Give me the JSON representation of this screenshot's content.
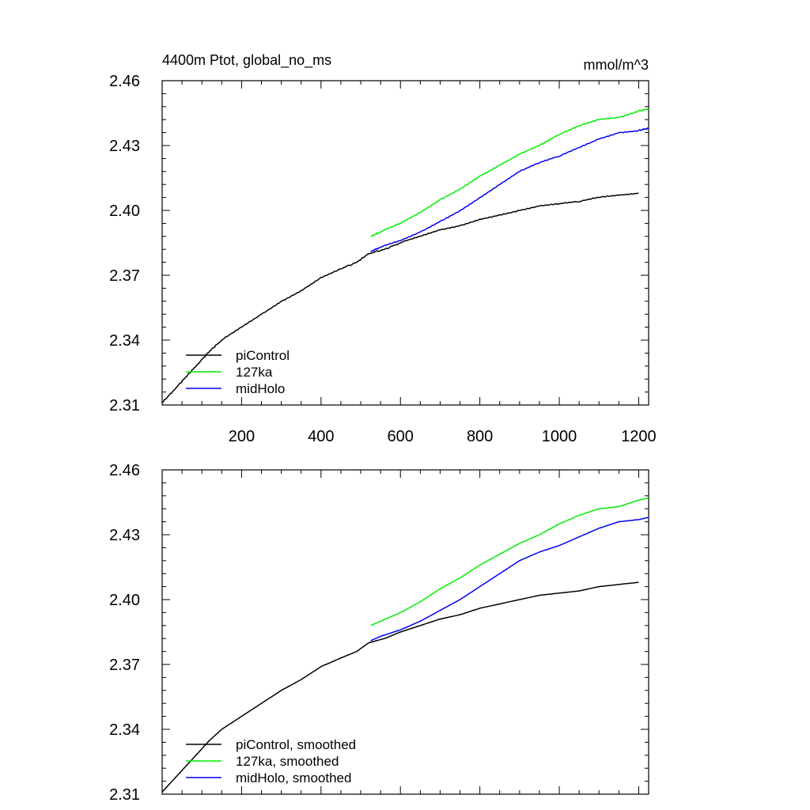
{
  "chart_data": [
    {
      "type": "line",
      "title": "4400m Ptot, global_no_ms",
      "units": "mmol/m^3",
      "xlabel": "",
      "ylabel": "",
      "xlim": [
        0,
        1225
      ],
      "ylim": [
        2.31,
        2.46
      ],
      "xticks": [
        200,
        400,
        600,
        800,
        1000,
        1200
      ],
      "xtick_labels": [
        "200",
        "400",
        "600",
        "800",
        "1000",
        "1200"
      ],
      "yticks": [
        2.31,
        2.34,
        2.37,
        2.4,
        2.43,
        2.46
      ],
      "ytick_labels": [
        "2.31",
        "2.34",
        "2.37",
        "2.40",
        "2.43",
        "2.46"
      ],
      "legend_position": "bottom-left",
      "series": [
        {
          "name": "piControl",
          "color": "#000000",
          "x": [
            0,
            30,
            60,
            90,
            120,
            150,
            200,
            250,
            300,
            350,
            400,
            450,
            490,
            520,
            560,
            600,
            650,
            700,
            750,
            800,
            850,
            900,
            950,
            1000,
            1050,
            1100,
            1150,
            1200
          ],
          "y": [
            2.311,
            2.317,
            2.323,
            2.329,
            2.335,
            2.34,
            2.346,
            2.352,
            2.358,
            2.363,
            2.369,
            2.373,
            2.376,
            2.38,
            2.382,
            2.385,
            2.388,
            2.391,
            2.393,
            2.396,
            2.398,
            2.4,
            2.402,
            2.403,
            2.404,
            2.406,
            2.407,
            2.408
          ]
        },
        {
          "name": "127ka",
          "color": "#00ee00",
          "x": [
            525,
            550,
            600,
            650,
            700,
            750,
            800,
            850,
            900,
            950,
            1000,
            1050,
            1100,
            1150,
            1200,
            1225
          ],
          "y": [
            2.388,
            2.39,
            2.394,
            2.399,
            2.405,
            2.41,
            2.416,
            2.421,
            2.426,
            2.43,
            2.435,
            2.439,
            2.442,
            2.443,
            2.446,
            2.447
          ]
        },
        {
          "name": "midHolo",
          "color": "#0000ee",
          "x": [
            525,
            550,
            600,
            650,
            700,
            750,
            800,
            850,
            900,
            950,
            1000,
            1050,
            1100,
            1150,
            1200,
            1225
          ],
          "y": [
            2.381,
            2.383,
            2.386,
            2.39,
            2.395,
            2.4,
            2.406,
            2.412,
            2.418,
            2.422,
            2.425,
            2.429,
            2.433,
            2.436,
            2.437,
            2.438
          ]
        }
      ]
    },
    {
      "type": "line",
      "title": "",
      "xlabel": "",
      "ylabel": "",
      "xlim": [
        0,
        1225
      ],
      "ylim": [
        2.31,
        2.46
      ],
      "xticks": [
        200,
        400,
        600,
        800,
        1000,
        1200
      ],
      "yticks": [
        2.31,
        2.34,
        2.37,
        2.4,
        2.43,
        2.46
      ],
      "ytick_labels": [
        "2.31",
        "2.34",
        "2.37",
        "2.40",
        "2.43",
        "2.46"
      ],
      "legend_position": "bottom-left",
      "series": [
        {
          "name": "piControl, smoothed",
          "color": "#000000",
          "x": [
            0,
            30,
            60,
            90,
            120,
            150,
            200,
            250,
            300,
            350,
            400,
            450,
            490,
            520,
            560,
            600,
            650,
            700,
            750,
            800,
            850,
            900,
            950,
            1000,
            1050,
            1100,
            1150,
            1200
          ],
          "y": [
            2.311,
            2.317,
            2.323,
            2.329,
            2.335,
            2.34,
            2.346,
            2.352,
            2.358,
            2.363,
            2.369,
            2.373,
            2.376,
            2.38,
            2.382,
            2.385,
            2.388,
            2.391,
            2.393,
            2.396,
            2.398,
            2.4,
            2.402,
            2.403,
            2.404,
            2.406,
            2.407,
            2.408
          ]
        },
        {
          "name": "127ka, smoothed",
          "color": "#00ee00",
          "x": [
            525,
            550,
            600,
            650,
            700,
            750,
            800,
            850,
            900,
            950,
            1000,
            1050,
            1100,
            1150,
            1200,
            1225
          ],
          "y": [
            2.388,
            2.39,
            2.394,
            2.399,
            2.405,
            2.41,
            2.416,
            2.421,
            2.426,
            2.43,
            2.435,
            2.439,
            2.442,
            2.443,
            2.446,
            2.447
          ]
        },
        {
          "name": "midHolo, smoothed",
          "color": "#0000ee",
          "x": [
            525,
            550,
            600,
            650,
            700,
            750,
            800,
            850,
            900,
            950,
            1000,
            1050,
            1100,
            1150,
            1200,
            1225
          ],
          "y": [
            2.381,
            2.383,
            2.386,
            2.39,
            2.395,
            2.4,
            2.406,
            2.412,
            2.418,
            2.422,
            2.425,
            2.429,
            2.433,
            2.436,
            2.437,
            2.438
          ]
        }
      ]
    }
  ]
}
